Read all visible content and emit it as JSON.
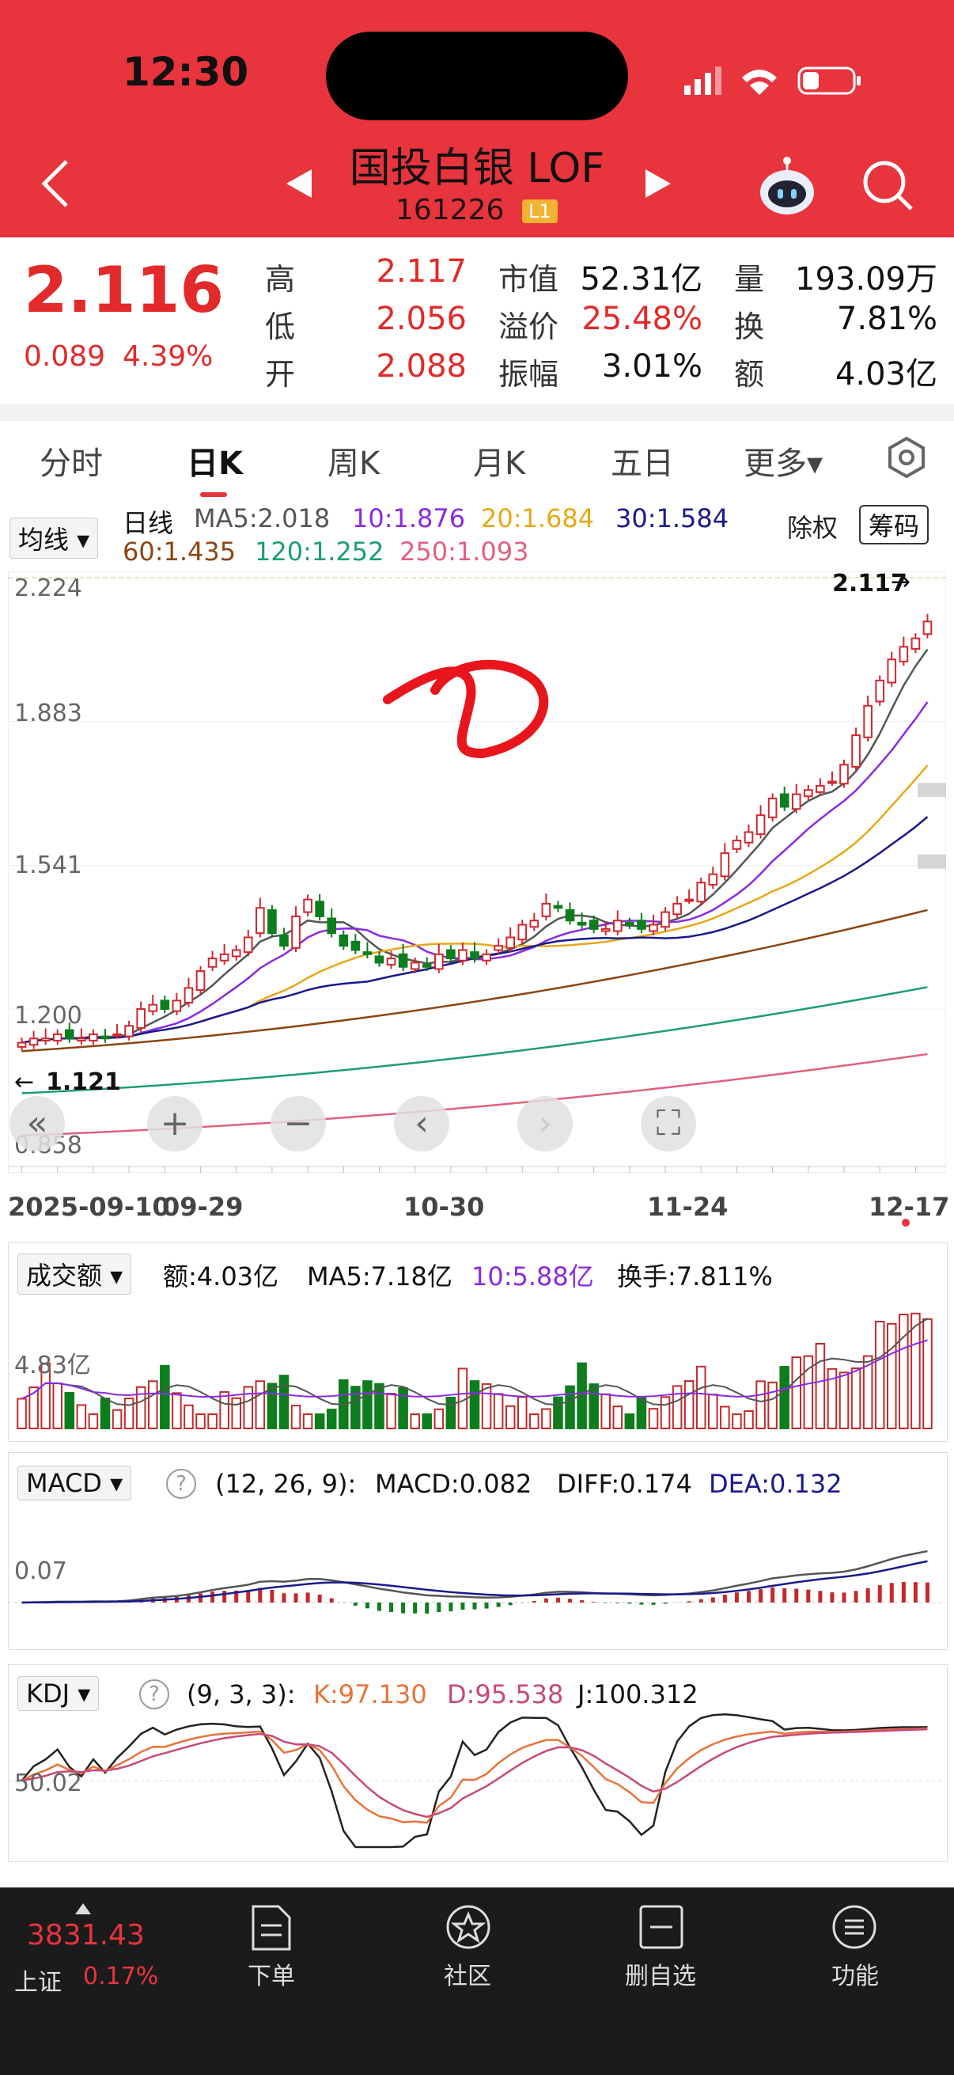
{
  "status": {
    "time": "12:30"
  },
  "header": {
    "name": "国投白银 LOF",
    "code": "161226",
    "level": "L1"
  },
  "quote": {
    "price": "2.116",
    "change": "0.089",
    "change_pct": "4.39%",
    "stats": [
      {
        "label": "高",
        "value": "2.117",
        "color": "red"
      },
      {
        "label": "低",
        "value": "2.056",
        "color": "red"
      },
      {
        "label": "开",
        "value": "2.088",
        "color": "red"
      },
      {
        "label": "市值",
        "value": "52.31亿",
        "color": "black"
      },
      {
        "label": "溢价",
        "value": "25.48%",
        "color": "red"
      },
      {
        "label": "振幅",
        "value": "3.01%",
        "color": "black"
      },
      {
        "label": "量",
        "value": "193.09万",
        "color": "black"
      },
      {
        "label": "换",
        "value": "7.81%",
        "color": "black"
      },
      {
        "label": "额",
        "value": "4.03亿",
        "color": "black"
      }
    ]
  },
  "tabs": [
    "分时",
    "日K",
    "周K",
    "月K",
    "五日",
    "更多▾"
  ],
  "kline": {
    "indicator_select": "均线 ▾",
    "legend_title": "日线",
    "ma_legend": [
      {
        "text": "MA5:2.018",
        "color": "#555555"
      },
      {
        "text": "10:1.876",
        "color": "#8a2be2"
      },
      {
        "text": "20:1.684",
        "color": "#e6a817"
      },
      {
        "text": "30:1.584",
        "color": "#1a1a8c"
      },
      {
        "text": "60:1.435",
        "color": "#8b4513"
      },
      {
        "text": "120:1.252",
        "color": "#1e9e6e"
      },
      {
        "text": "250:1.093",
        "color": "#e06080"
      }
    ],
    "btn_rights": "除权",
    "btn_chips": "筹码",
    "y_labels": [
      "2.224",
      "1.883",
      "1.541",
      "1.200",
      "0.858"
    ],
    "high_mark": "2.117",
    "low_mark": "1.121",
    "dates": [
      "2025-09-10",
      "09-29",
      "10-30",
      "11-24",
      "12-17"
    ]
  },
  "volume": {
    "select": "成交额 ▾",
    "amount": "额:4.03亿",
    "ma5": "MA5:7.18亿",
    "ma10": "10:5.88亿",
    "turnover": "换手:7.811%",
    "y_label": "4.83亿"
  },
  "macd": {
    "select": "MACD ▾",
    "params": "(12, 26, 9):",
    "macd": "MACD:0.082",
    "diff": "DIFF:0.174",
    "dea": "DEA:0.132",
    "y_label": "0.07"
  },
  "kdj": {
    "select": "KDJ ▾",
    "params": "(9, 3, 3):",
    "k": "K:97.130",
    "d": "D:95.538",
    "j": "J:100.312",
    "y_label": "50.02"
  },
  "bottom": {
    "index_value": "3831.43",
    "index_name": "上证",
    "index_pct": "0.17%",
    "nav": [
      "下单",
      "社区",
      "删自选",
      "功能"
    ]
  },
  "chart_data": {
    "type": "candlestick",
    "y_range": [
      0.858,
      2.224
    ],
    "closes": [
      1.12,
      1.13,
      1.13,
      1.14,
      1.13,
      1.13,
      1.14,
      1.13,
      1.14,
      1.16,
      1.2,
      1.21,
      1.2,
      1.22,
      1.25,
      1.29,
      1.32,
      1.33,
      1.34,
      1.37,
      1.44,
      1.38,
      1.35,
      1.42,
      1.46,
      1.42,
      1.38,
      1.35,
      1.34,
      1.33,
      1.31,
      1.32,
      1.3,
      1.31,
      1.3,
      1.33,
      1.32,
      1.34,
      1.32,
      1.33,
      1.35,
      1.37,
      1.4,
      1.41,
      1.45,
      1.44,
      1.41,
      1.4,
      1.39,
      1.39,
      1.41,
      1.4,
      1.39,
      1.4,
      1.43,
      1.45,
      1.46,
      1.5,
      1.52,
      1.57,
      1.6,
      1.62,
      1.66,
      1.7,
      1.68,
      1.71,
      1.72,
      1.73,
      1.74,
      1.78,
      1.85,
      1.92,
      1.98,
      2.03,
      2.06,
      2.08,
      2.12
    ],
    "ma_last": {
      "MA5": 2.018,
      "MA10": 1.876,
      "MA20": 1.684,
      "MA30": 1.584,
      "MA60": 1.435,
      "MA120": 1.252,
      "MA250": 1.093
    }
  }
}
